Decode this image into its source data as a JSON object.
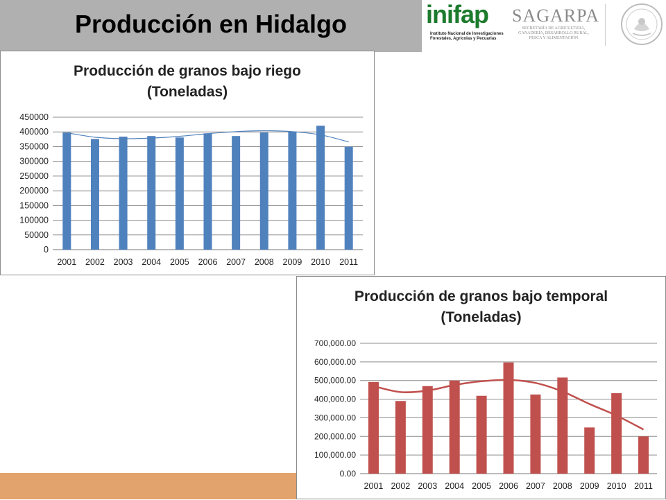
{
  "page": {
    "title": "Producción en Hidalgo"
  },
  "logos": {
    "inifap_word": "inifap",
    "inifap_sub": "Instituto Nacional de Investigaciones Forestales, Agrícolas y Pecuarias",
    "sagarpa_word": "SAGARPA",
    "sagarpa_sub": "SECRETARÍA DE AGRICULTURA, GANADERÍA, DESARROLLO RURAL, PESCA Y ALIMENTACIÓN"
  },
  "colors": {
    "riego_bar": "#4f81bd",
    "riego_trend": "#4f81bd",
    "temporal_bar": "#c0504d",
    "temporal_trend": "#c0504d",
    "title_bar": "#b0b0b0",
    "bottom_band": "#e3a36c"
  },
  "chart_data": [
    {
      "type": "bar",
      "title_line1": "Producción de granos bajo riego",
      "title_line2": "(Toneladas)",
      "categories": [
        "2001",
        "2002",
        "2003",
        "2004",
        "2005",
        "2006",
        "2007",
        "2008",
        "2009",
        "2010",
        "2011"
      ],
      "values": [
        398000,
        376000,
        384000,
        386000,
        381000,
        395000,
        386000,
        398000,
        401000,
        421000,
        350000
      ],
      "trendline": "polynomial",
      "trend_values": [
        397000,
        382000,
        377000,
        379000,
        385000,
        394000,
        401000,
        404000,
        401000,
        390000,
        366000
      ],
      "ylim": [
        0,
        450000
      ],
      "yticks": [
        "0",
        "50000",
        "100000",
        "150000",
        "200000",
        "250000",
        "300000",
        "350000",
        "400000",
        "450000"
      ],
      "grid": true
    },
    {
      "type": "bar",
      "title_line1": "Producción de granos bajo temporal",
      "title_line2": "(Toneladas)",
      "categories": [
        "2001",
        "2002",
        "2003",
        "2004",
        "2005",
        "2006",
        "2007",
        "2008",
        "2009",
        "2010",
        "2011"
      ],
      "values": [
        492000,
        390000,
        470000,
        500000,
        418000,
        597000,
        425000,
        516000,
        248000,
        432000,
        200000
      ],
      "trendline": "polynomial",
      "trend_values": [
        470000,
        438000,
        446000,
        476000,
        496000,
        503000,
        487000,
        441000,
        374000,
        312000,
        237000
      ],
      "ylim": [
        0,
        700000
      ],
      "yticks": [
        "0.00",
        "100,000.00",
        "200,000.00",
        "300,000.00",
        "400,000.00",
        "500,000.00",
        "600,000.00",
        "700,000.00"
      ],
      "grid": true
    }
  ]
}
